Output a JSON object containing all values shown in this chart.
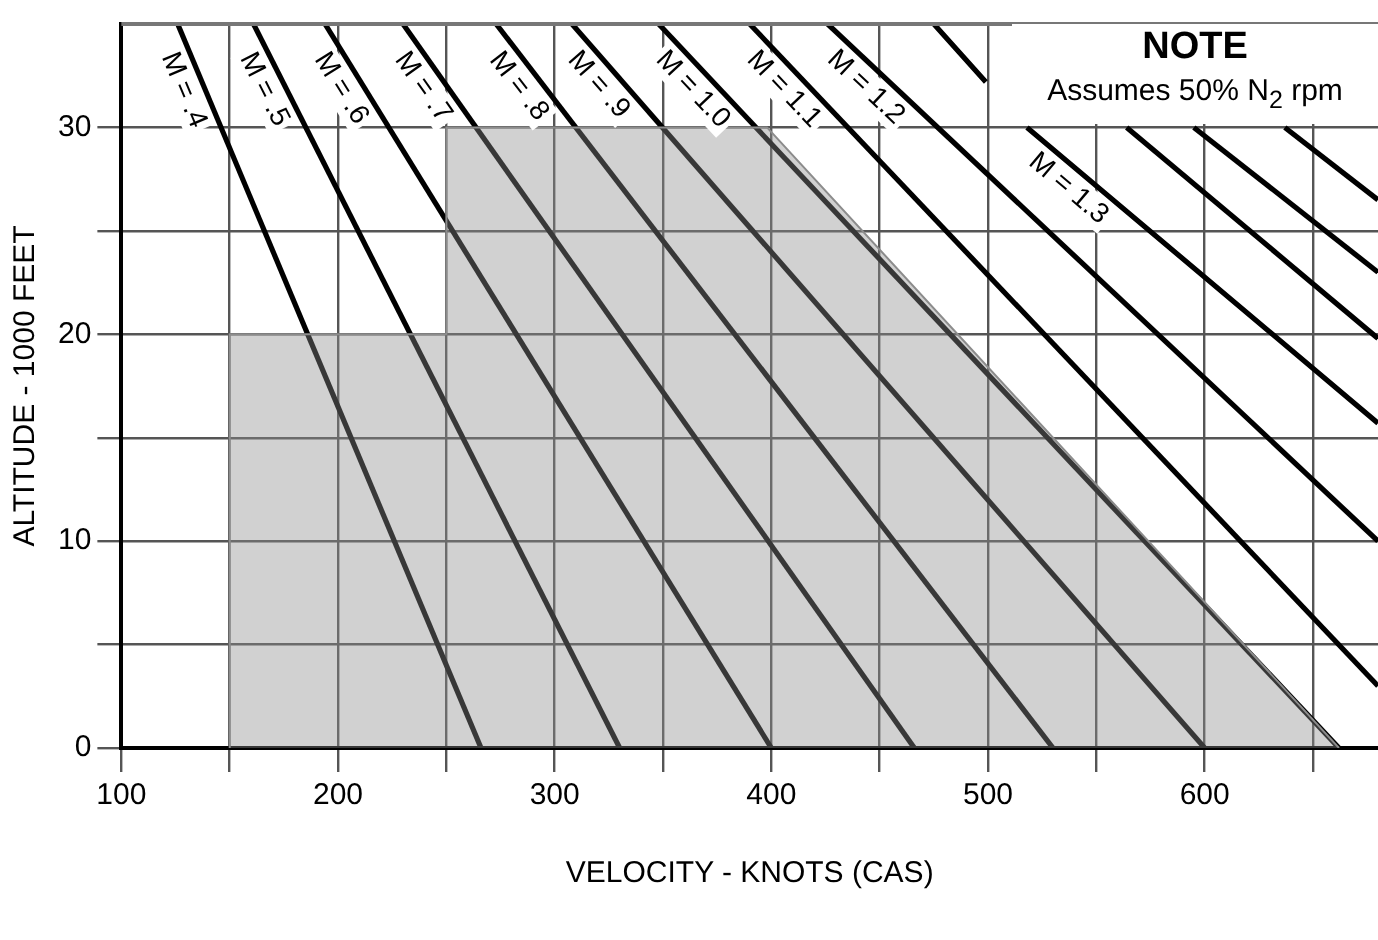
{
  "chart_data": {
    "type": "line",
    "xlabel": "VELOCITY - KNOTS (CAS)",
    "ylabel": "ALTITUDE - 1000 FEET",
    "annotations": [
      "NOTE",
      "Assumes 50% N$_{2}$ rpm"
    ],
    "xlim": [
      100,
      680
    ],
    "ylim": [
      0,
      35
    ],
    "xticks": [
      100,
      {
        "value": 150,
        "label": null
      },
      200,
      {
        "value": 250,
        "label": null
      },
      300,
      {
        "value": 350,
        "label": null
      },
      400,
      {
        "value": 450,
        "label": null
      },
      500,
      {
        "value": 550,
        "label": null
      },
      600,
      {
        "value": 650,
        "label": null
      }
    ],
    "yticks": [
      0,
      {
        "value": 5,
        "label": null
      },
      10,
      {
        "value": 15,
        "label": null
      },
      20,
      {
        "value": 25,
        "label": null
      },
      30
    ],
    "grid": true,
    "legend": false,
    "marker": "none",
    "line_style": "solid",
    "series": [
      {
        "type": "area",
        "color": "#8c8c8c",
        "x": [
          150,
          150,
          250,
          250,
          398,
          662
        ],
        "values": [
          0,
          20,
          20,
          30,
          30,
          0
        ]
      },
      {
        "name": "M = .4",
        "color": "#000000",
        "x": [
          126,
          266
        ],
        "values": [
          35,
          0
        ]
      },
      {
        "name": "M = .5",
        "color": "#000000",
        "x": [
          161,
          330
        ],
        "values": [
          35,
          0
        ]
      },
      {
        "name": "M = .6",
        "color": "#000000",
        "x": [
          194,
          400
        ],
        "values": [
          35,
          0
        ]
      },
      {
        "name": "M = .7",
        "color": "#000000",
        "x": [
          230,
          466
        ],
        "values": [
          35,
          0
        ]
      },
      {
        "name": "M = .8",
        "color": "#000000",
        "x": [
          273,
          530
        ],
        "values": [
          35,
          0
        ]
      },
      {
        "name": "M = .9",
        "color": "#000000",
        "x": [
          308,
          600
        ],
        "values": [
          35,
          0
        ]
      },
      {
        "name": "M = 1.0",
        "color": "#000000",
        "x": [
          348,
          662
        ],
        "values": [
          35,
          0
        ]
      },
      {
        "name": "M = 1.1",
        "color": "#000000",
        "x": [
          390,
          680
        ],
        "values": [
          35,
          3
        ]
      },
      {
        "name": "M = 1.2",
        "color": "#000000",
        "x": [
          426,
          680
        ],
        "values": [
          35,
          10
        ]
      },
      {
        "name": "M = 1.3",
        "color": "#000000",
        "x": [
          475,
          499,
          509,
          518,
          680
        ],
        "values": [
          35,
          32.2,
          null,
          30,
          15.7
        ]
      },
      {
        "color": "#000000",
        "x": [
          564,
          680
        ],
        "values": [
          30,
          19.8
        ]
      },
      {
        "color": "#000000",
        "x": [
          595,
          680
        ],
        "values": [
          30,
          23
        ]
      },
      {
        "color": "#000000",
        "x": [
          637,
          680
        ],
        "values": [
          30,
          26.5
        ]
      }
    ]
  }
}
